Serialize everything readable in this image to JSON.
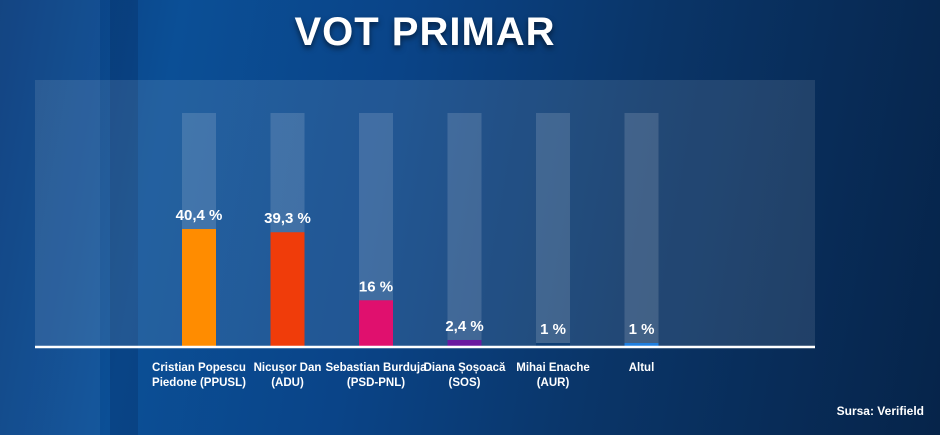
{
  "chart_data": {
    "type": "bar",
    "title": "VOT PRIMAR",
    "categories": [
      [
        "Cristian Popescu",
        "Piedone (PPUSL)"
      ],
      [
        "Nicușor Dan",
        "(ADU)"
      ],
      [
        "Sebastian Burduja",
        "(PSD-PNL)"
      ],
      [
        "Diana Șoșoacă",
        "(SOS)"
      ],
      [
        "Mihai Enache",
        "(AUR)"
      ],
      [
        "Altul"
      ]
    ],
    "values": [
      40.4,
      39.3,
      16,
      2.4,
      1,
      1
    ],
    "value_labels": [
      "40,4 %",
      "39,3 %",
      "16 %",
      "2,4 %",
      "1 %",
      "1 %"
    ],
    "colors": [
      "#ff8c00",
      "#f03c0a",
      "#e0106e",
      "#6a1aa0",
      "#0e3e74",
      "#1f7fe0"
    ],
    "ylim": [
      0,
      100
    ],
    "grid": false,
    "legend": false
  },
  "source": "Sursa: Verifield"
}
